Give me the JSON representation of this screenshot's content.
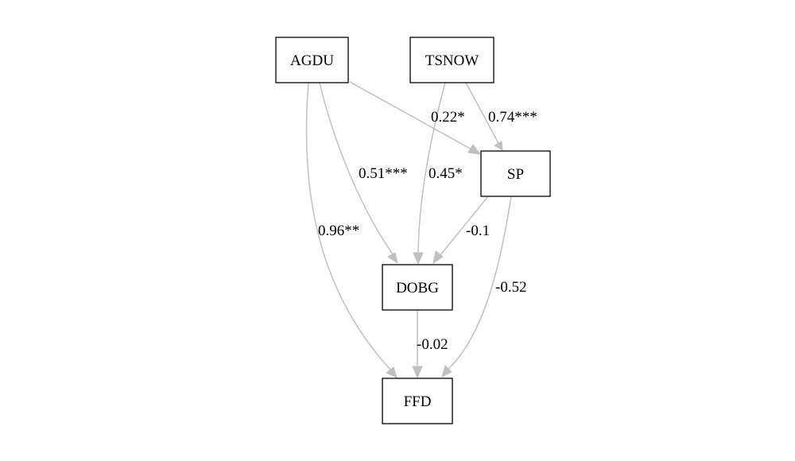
{
  "diagram": {
    "type": "path-diagram",
    "colors": {
      "edge": "#c0c0c0",
      "node_border": "#000000",
      "text": "#000000",
      "background": "#ffffff"
    },
    "nodes": {
      "agdu": "AGDU",
      "tsnow": "TSNOW",
      "sp": "SP",
      "dobg": "DOBG",
      "ffd": "FFD"
    },
    "edges": [
      {
        "from": "AGDU",
        "to": "SP",
        "label": "0.22*"
      },
      {
        "from": "TSNOW",
        "to": "SP",
        "label": "0.74***"
      },
      {
        "from": "AGDU",
        "to": "DOBG",
        "label": "0.51***"
      },
      {
        "from": "TSNOW",
        "to": "DOBG",
        "label": "0.45*"
      },
      {
        "from": "AGDU",
        "to": "FFD",
        "label": "0.96**"
      },
      {
        "from": "SP",
        "to": "DOBG",
        "label": "-0.1"
      },
      {
        "from": "SP",
        "to": "FFD",
        "label": "-0.52"
      },
      {
        "from": "DOBG",
        "to": "FFD",
        "label": "-0.02"
      }
    ]
  }
}
